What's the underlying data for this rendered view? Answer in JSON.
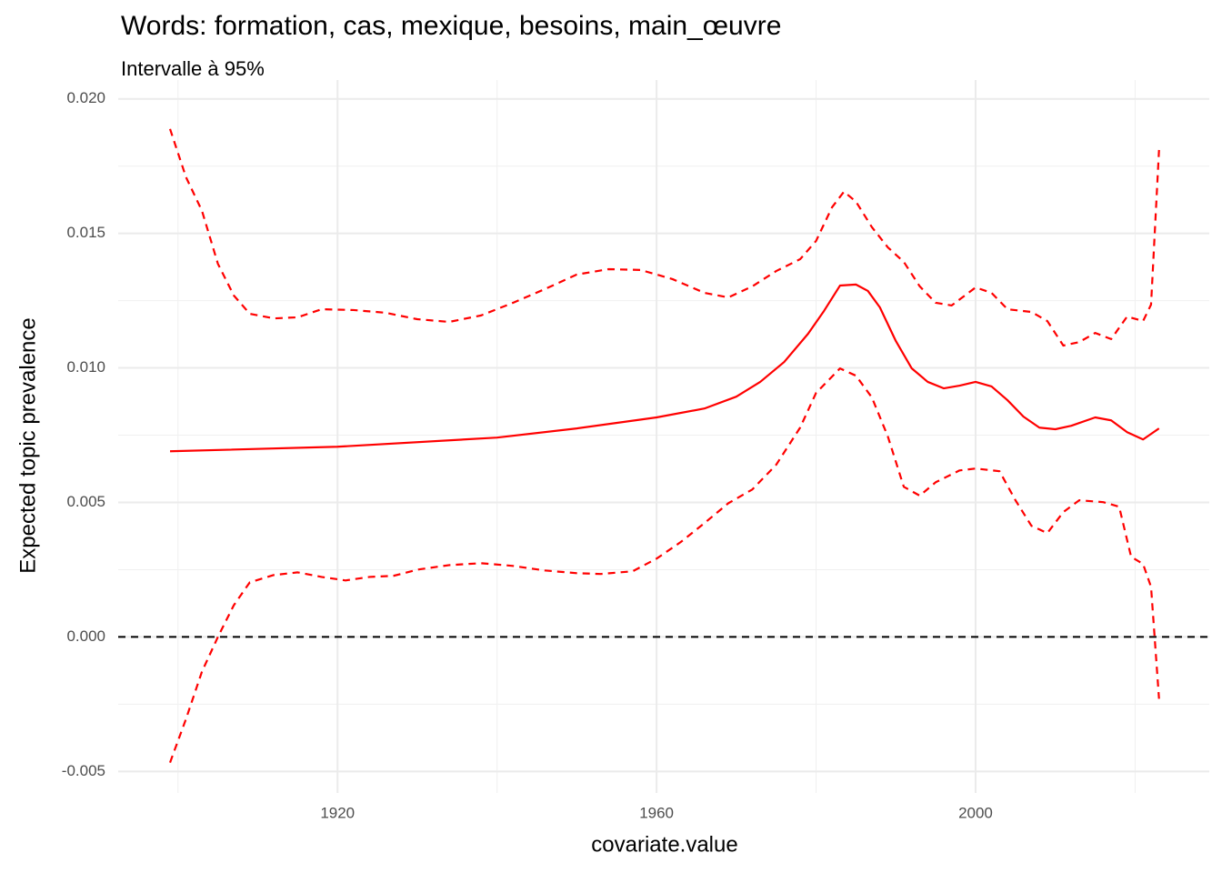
{
  "chart_data": {
    "type": "line",
    "title": "Words: formation, cas, mexique, besoins, main_œuvre",
    "subtitle": "Intervalle à 95%",
    "xlabel": "covariate.value",
    "ylabel": "Expected topic prevalence",
    "xlim": [
      1892.5,
      2029.3
    ],
    "ylim": [
      -0.0058,
      0.0207
    ],
    "xticks": [
      1920,
      1960,
      2000
    ],
    "yticks": [
      {
        "value": -0.005,
        "label": "-0.005"
      },
      {
        "value": 0,
        "label": "0.000"
      },
      {
        "value": 0.005,
        "label": "0.005"
      },
      {
        "value": 0.01,
        "label": "0.010"
      },
      {
        "value": 0.015,
        "label": "0.015"
      },
      {
        "value": 0.02,
        "label": "0.020"
      }
    ],
    "grid": true,
    "hline": {
      "value": 0,
      "color": "#000000",
      "dashed": true
    },
    "series": [
      {
        "color": "#ff0000",
        "dashed": false,
        "x": [
          1899,
          1920,
          1940,
          1950,
          1960,
          1966,
          1970,
          1973,
          1976,
          1979,
          1981,
          1983,
          1985,
          1986.5,
          1988,
          1990,
          1992,
          1994,
          1996,
          1998,
          2000,
          2002,
          2004,
          2006,
          2008,
          2010,
          2012,
          2015,
          2017,
          2019,
          2021,
          2023
        ],
        "values": [
          0.0069,
          0.00707,
          0.00741,
          0.00775,
          0.00816,
          0.00849,
          0.00893,
          0.00948,
          0.01022,
          0.01127,
          0.01212,
          0.01306,
          0.0131,
          0.01286,
          0.01225,
          0.011,
          0.00998,
          0.00948,
          0.00924,
          0.00934,
          0.00948,
          0.00931,
          0.0088,
          0.00819,
          0.00778,
          0.00772,
          0.00785,
          0.00816,
          0.00805,
          0.00761,
          0.00734,
          0.00775
        ]
      },
      {
        "color": "#ff0000",
        "dashed": true,
        "x": [
          1899,
          1901,
          1903,
          1905,
          1907,
          1909,
          1912,
          1915,
          1918,
          1922,
          1926,
          1930,
          1934,
          1938,
          1942,
          1946,
          1950,
          1954,
          1958,
          1962,
          1966,
          1969,
          1972,
          1975,
          1978,
          1980,
          1982,
          1983.5,
          1985,
          1987,
          1989,
          1991,
          1993,
          1995,
          1997,
          2000,
          2002,
          2004,
          2007,
          2009,
          2011,
          2013,
          2015,
          2017,
          2019,
          2021,
          2022,
          2023
        ],
        "values": [
          0.01888,
          0.01709,
          0.01584,
          0.01387,
          0.01269,
          0.01201,
          0.01184,
          0.01188,
          0.01218,
          0.01215,
          0.01205,
          0.01181,
          0.01171,
          0.01195,
          0.01242,
          0.01293,
          0.01347,
          0.01367,
          0.01364,
          0.0133,
          0.01279,
          0.01262,
          0.01303,
          0.0136,
          0.01404,
          0.01472,
          0.01597,
          0.01655,
          0.01618,
          0.01523,
          0.01448,
          0.01394,
          0.01303,
          0.01242,
          0.01232,
          0.01299,
          0.01279,
          0.01218,
          0.01208,
          0.01174,
          0.01083,
          0.01096,
          0.0113,
          0.01107,
          0.01191,
          0.01174,
          0.01235,
          0.0181
        ]
      },
      {
        "color": "#ff0000",
        "dashed": true,
        "x": [
          1899,
          1901,
          1903,
          1905,
          1907,
          1909,
          1912,
          1915,
          1918,
          1921,
          1924,
          1927,
          1930,
          1934,
          1938,
          1942,
          1946,
          1950,
          1953,
          1957,
          1960,
          1963,
          1966,
          1969,
          1972,
          1975,
          1978,
          1980,
          1983,
          1985,
          1987,
          1989,
          1991,
          1993,
          1995,
          1998,
          2000,
          2003,
          2005,
          2007,
          2009,
          2011,
          2013,
          2016,
          2018,
          2019.5,
          2021,
          2022,
          2023
        ],
        "values": [
          -0.00467,
          -0.00305,
          -0.00129,
          0,
          0.00118,
          0.00203,
          0.0023,
          0.0024,
          0.00223,
          0.0021,
          0.00223,
          0.00227,
          0.0025,
          0.00267,
          0.00274,
          0.00264,
          0.00247,
          0.00237,
          0.00234,
          0.00244,
          0.00291,
          0.00352,
          0.00423,
          0.00497,
          0.00548,
          0.0064,
          0.00778,
          0.00907,
          0.00998,
          0.00971,
          0.0089,
          0.00745,
          0.00558,
          0.00525,
          0.00575,
          0.00619,
          0.00626,
          0.00616,
          0.00508,
          0.00413,
          0.00386,
          0.00464,
          0.00508,
          0.00501,
          0.00484,
          0.00298,
          0.00271,
          0.00186,
          -0.0023
        ]
      }
    ]
  }
}
